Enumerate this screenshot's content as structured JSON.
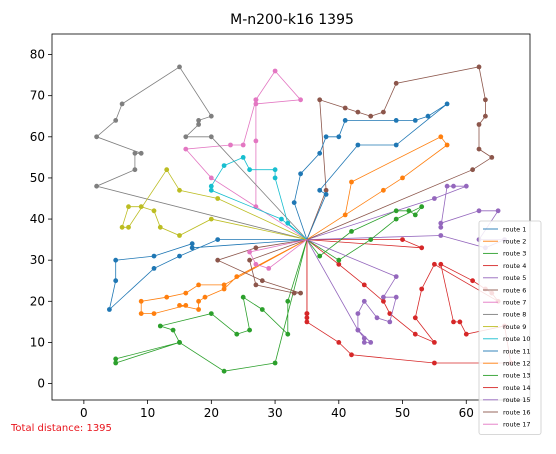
{
  "footer_text": "Total distance: 1395",
  "chart_data": {
    "type": "line",
    "title": "M-n200-k16 1395",
    "xlim": [
      -5,
      70
    ],
    "ylim": [
      -4,
      85
    ],
    "xticks": [
      0,
      10,
      20,
      30,
      40,
      50,
      60
    ],
    "yticks": [
      0,
      10,
      20,
      30,
      40,
      50,
      60,
      70,
      80
    ],
    "legend": "right",
    "depot": [
      35,
      35
    ],
    "series": [
      {
        "name": "route 1",
        "color": "#1f77b4",
        "points": [
          [
            35,
            35
          ],
          [
            21,
            35
          ],
          [
            15,
            31
          ],
          [
            11,
            28
          ],
          [
            4,
            18
          ],
          [
            5,
            25
          ],
          [
            5,
            30
          ],
          [
            11,
            31
          ],
          [
            17,
            34
          ],
          [
            17,
            33
          ],
          [
            35,
            35
          ]
        ]
      },
      {
        "name": "route 2",
        "color": "#ff7f0e",
        "points": [
          [
            35,
            35
          ],
          [
            24,
            26
          ],
          [
            22,
            23
          ],
          [
            19,
            21
          ],
          [
            18,
            20
          ],
          [
            18,
            18
          ],
          [
            15,
            19
          ],
          [
            16,
            19
          ],
          [
            11,
            17
          ],
          [
            9,
            17
          ],
          [
            9,
            20
          ],
          [
            13,
            21
          ],
          [
            16,
            22
          ],
          [
            18,
            24
          ],
          [
            22,
            24
          ],
          [
            35,
            35
          ]
        ]
      },
      {
        "name": "route 3",
        "color": "#2ca02c",
        "points": [
          [
            35,
            35
          ],
          [
            32,
            20
          ],
          [
            32,
            12
          ],
          [
            28,
            18
          ],
          [
            25,
            21
          ],
          [
            26,
            13
          ],
          [
            24,
            12
          ],
          [
            20,
            17
          ],
          [
            12,
            14
          ],
          [
            14,
            13
          ],
          [
            15,
            10
          ],
          [
            5,
            5
          ],
          [
            5,
            6
          ],
          [
            15,
            10
          ],
          [
            22,
            3
          ],
          [
            30,
            5
          ],
          [
            35,
            35
          ]
        ]
      },
      {
        "name": "route 4",
        "color": "#d62728",
        "points": [
          [
            35,
            35
          ],
          [
            53,
            33
          ],
          [
            50,
            35
          ],
          [
            35,
            35
          ],
          [
            35,
            17
          ],
          [
            35,
            15
          ],
          [
            40,
            10
          ],
          [
            42,
            7
          ],
          [
            55,
            5
          ],
          [
            67,
            5
          ],
          [
            66,
            14
          ],
          [
            60,
            12
          ],
          [
            59,
            15
          ],
          [
            58,
            15
          ],
          [
            56,
            29
          ],
          [
            61,
            25
          ],
          [
            63,
            23
          ],
          [
            64,
            22
          ],
          [
            65,
            20
          ],
          [
            55,
            29
          ],
          [
            53,
            23
          ],
          [
            52,
            16
          ],
          [
            55,
            10
          ],
          [
            52,
            12
          ],
          [
            48,
            17
          ],
          [
            47,
            20
          ],
          [
            44,
            24
          ],
          [
            40,
            29
          ],
          [
            35,
            35
          ]
        ]
      },
      {
        "name": "route 5",
        "color": "#9467bd",
        "points": [
          [
            35,
            35
          ],
          [
            56,
            36
          ],
          [
            63,
            33
          ],
          [
            66,
            35
          ],
          [
            62,
            35
          ],
          [
            65,
            42
          ],
          [
            62,
            42
          ],
          [
            56,
            39
          ],
          [
            56,
            38
          ],
          [
            57,
            48
          ],
          [
            58,
            48
          ],
          [
            60,
            48
          ],
          [
            55,
            45
          ],
          [
            35,
            35
          ]
        ]
      },
      {
        "name": "route 6",
        "color": "#8c564b",
        "points": [
          [
            35,
            35
          ],
          [
            61,
            52
          ],
          [
            64,
            55
          ],
          [
            62,
            57
          ],
          [
            62,
            63
          ],
          [
            63,
            65
          ],
          [
            63,
            69
          ],
          [
            62,
            77
          ],
          [
            49,
            73
          ],
          [
            47,
            66
          ],
          [
            45,
            65
          ],
          [
            43,
            66
          ],
          [
            41,
            67
          ],
          [
            37,
            69
          ],
          [
            38,
            47
          ],
          [
            35,
            35
          ]
        ]
      },
      {
        "name": "route 7",
        "color": "#e377c2",
        "points": [
          [
            35,
            35
          ],
          [
            27,
            43
          ],
          [
            27,
            59
          ],
          [
            27,
            69
          ],
          [
            30,
            76
          ],
          [
            34,
            69
          ],
          [
            27,
            68
          ],
          [
            27,
            69
          ],
          [
            25,
            58
          ],
          [
            23,
            58
          ],
          [
            16,
            57
          ],
          [
            20,
            50
          ],
          [
            35,
            35
          ]
        ]
      },
      {
        "name": "route 8",
        "color": "#7f7f7f",
        "points": [
          [
            35,
            35
          ],
          [
            2,
            48
          ],
          [
            8,
            52
          ],
          [
            8,
            56
          ],
          [
            9,
            56
          ],
          [
            2,
            60
          ],
          [
            5,
            64
          ],
          [
            6,
            68
          ],
          [
            15,
            77
          ],
          [
            20,
            65
          ],
          [
            18,
            64
          ],
          [
            18,
            63
          ],
          [
            16,
            60
          ],
          [
            20,
            60
          ],
          [
            35,
            35
          ]
        ]
      },
      {
        "name": "route 9",
        "color": "#bcbd22",
        "points": [
          [
            35,
            35
          ],
          [
            20,
            40
          ],
          [
            15,
            36
          ],
          [
            12,
            38
          ],
          [
            11,
            42
          ],
          [
            9,
            43
          ],
          [
            7,
            43
          ],
          [
            6,
            38
          ],
          [
            7,
            38
          ],
          [
            13,
            52
          ],
          [
            15,
            47
          ],
          [
            21,
            45
          ],
          [
            35,
            35
          ]
        ]
      },
      {
        "name": "route 10",
        "color": "#17becf",
        "points": [
          [
            35,
            35
          ],
          [
            32,
            39
          ],
          [
            30,
            50
          ],
          [
            30,
            52
          ],
          [
            26,
            52
          ],
          [
            25,
            55
          ],
          [
            22,
            53
          ],
          [
            20,
            48
          ],
          [
            20,
            47
          ],
          [
            31,
            40
          ],
          [
            35,
            35
          ]
        ]
      },
      {
        "name": "route 11",
        "color": "#1f77b4",
        "points": [
          [
            35,
            35
          ],
          [
            33,
            44
          ],
          [
            34,
            51
          ],
          [
            37,
            56
          ],
          [
            38,
            60
          ],
          [
            40,
            60
          ],
          [
            41,
            64
          ],
          [
            49,
            64
          ],
          [
            52,
            64
          ],
          [
            54,
            65
          ],
          [
            57,
            68
          ],
          [
            49,
            58
          ],
          [
            43,
            58
          ],
          [
            37,
            47
          ],
          [
            38,
            46
          ],
          [
            35,
            35
          ]
        ]
      },
      {
        "name": "route 12",
        "color": "#ff7f0e",
        "points": [
          [
            35,
            35
          ],
          [
            41,
            41
          ],
          [
            42,
            49
          ],
          [
            56,
            60
          ],
          [
            57,
            58
          ],
          [
            50,
            50
          ],
          [
            47,
            47
          ],
          [
            35,
            35
          ]
        ]
      },
      {
        "name": "route 13",
        "color": "#2ca02c",
        "points": [
          [
            35,
            35
          ],
          [
            37,
            31
          ],
          [
            42,
            37
          ],
          [
            49,
            42
          ],
          [
            51,
            42
          ],
          [
            52,
            41
          ],
          [
            53,
            43
          ],
          [
            49,
            40
          ],
          [
            45,
            35
          ],
          [
            40,
            30
          ],
          [
            35,
            35
          ]
        ]
      },
      {
        "name": "route 14",
        "color": "#d62728",
        "points": [
          [
            35,
            35
          ],
          [
            35,
            16
          ],
          [
            35,
            17
          ],
          [
            35,
            35
          ]
        ]
      },
      {
        "name": "route 15",
        "color": "#9467bd",
        "points": [
          [
            35,
            35
          ],
          [
            49,
            26
          ],
          [
            47,
            21
          ],
          [
            49,
            21
          ],
          [
            48,
            15
          ],
          [
            46,
            16
          ],
          [
            44,
            20
          ],
          [
            43,
            17
          ],
          [
            43,
            13
          ],
          [
            44,
            11
          ],
          [
            44,
            10
          ],
          [
            45,
            10
          ],
          [
            43,
            13
          ],
          [
            35,
            35
          ]
        ]
      },
      {
        "name": "route 16",
        "color": "#8c564b",
        "points": [
          [
            35,
            35
          ],
          [
            27,
            33
          ],
          [
            21,
            30
          ],
          [
            28,
            25
          ],
          [
            34,
            22
          ],
          [
            33,
            22
          ],
          [
            27,
            24
          ],
          [
            26,
            30
          ],
          [
            35,
            35
          ]
        ]
      },
      {
        "name": "route 17",
        "color": "#e377c2",
        "points": [
          [
            35,
            35
          ],
          [
            29,
            28
          ],
          [
            27,
            29
          ],
          [
            26,
            32
          ],
          [
            35,
            35
          ]
        ]
      }
    ]
  }
}
